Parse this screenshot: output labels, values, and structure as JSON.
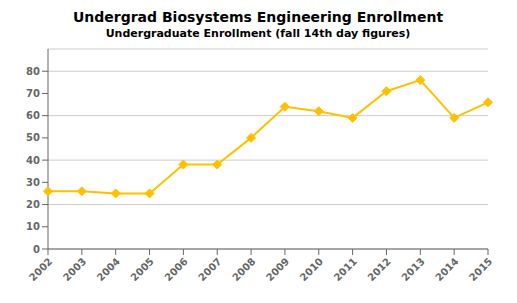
{
  "chart_data": {
    "type": "line",
    "title": "Undergrad Biosystems Engineering Enrollment",
    "subtitle": "Undergraduate Enrollment (fall 14th day figures)",
    "categories": [
      "2002",
      "2003",
      "2004",
      "2005",
      "2006",
      "2007",
      "2008",
      "2009",
      "2010",
      "2011",
      "2012",
      "2013",
      "2014",
      "2015"
    ],
    "values": [
      26,
      26,
      25,
      25,
      38,
      38,
      50,
      64,
      62,
      59,
      71,
      76,
      59,
      66
    ],
    "color": "#FFC000",
    "marker": "diamond",
    "ylim": [
      0,
      90
    ],
    "yticks": [
      0,
      10,
      20,
      30,
      40,
      50,
      60,
      70,
      80
    ],
    "grid": true
  }
}
